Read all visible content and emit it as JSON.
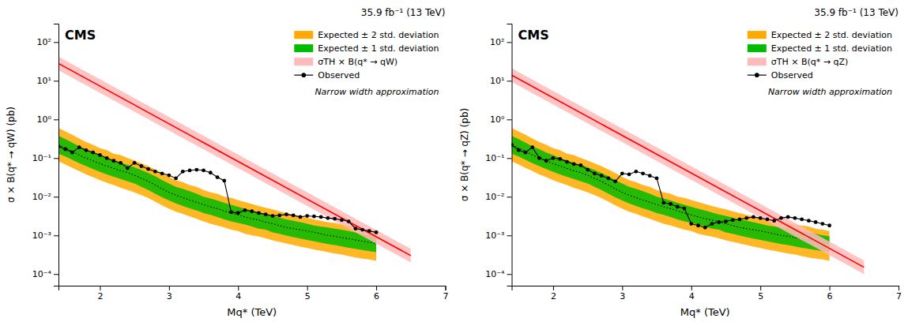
{
  "chart_data": [
    {
      "type": "line",
      "title": "35.9 fb⁻¹ (13 TeV)",
      "x_label": "Mq* (TeV)",
      "y_label": "σ × B(q* → qW) (pb)",
      "annotations": [
        "CMS",
        "Narrow width approximation"
      ],
      "log": "y",
      "legend": "upper right",
      "xlim": [
        1.4,
        7.0
      ],
      "ylim": [
        5e-05,
        300
      ],
      "xticks": [
        2,
        3,
        4,
        5,
        6,
        7
      ],
      "yticks": [
        {
          "value": 0.0001,
          "label": "10⁻⁴"
        },
        {
          "value": 0.001,
          "label": "10⁻³"
        },
        {
          "value": 0.01,
          "label": "10⁻²"
        },
        {
          "value": 0.1,
          "label": "10⁻¹"
        },
        {
          "value": 1,
          "label": "10⁰"
        },
        {
          "value": 10,
          "label": "10¹"
        },
        {
          "value": 100,
          "label": "10²"
        }
      ],
      "x": [
        1.4,
        1.5,
        1.6,
        1.7,
        1.8,
        1.9,
        2.0,
        2.1,
        2.2,
        2.3,
        2.4,
        2.5,
        2.6,
        2.7,
        2.8,
        2.9,
        3.0,
        3.1,
        3.2,
        3.3,
        3.4,
        3.5,
        3.6,
        3.7,
        3.8,
        3.9,
        4.0,
        4.1,
        4.2,
        4.3,
        4.4,
        4.5,
        4.6,
        4.7,
        4.8,
        4.9,
        5.0,
        5.1,
        5.2,
        5.3,
        5.4,
        5.5,
        5.6,
        5.7,
        5.8,
        5.9,
        6.0
      ],
      "series": [
        {
          "type": "area",
          "name": "Expected ± 2 std. deviation",
          "color": "#ffaa00",
          "lower": [
            0.082,
            0.068,
            0.056,
            0.046,
            0.038,
            0.032,
            0.027,
            0.023,
            0.02,
            0.017,
            0.015,
            0.013,
            0.011,
            0.0092,
            0.0075,
            0.006,
            0.0049,
            0.0041,
            0.0036,
            0.0031,
            0.0027,
            0.0023,
            0.002,
            0.0018,
            0.0016,
            0.0014,
            0.0013,
            0.0011,
            0.001,
            0.00093,
            0.00084,
            0.00075,
            0.00068,
            0.00062,
            0.00056,
            0.00051,
            0.00047,
            0.00043,
            0.0004,
            0.00037,
            0.00034,
            0.00032,
            0.00029,
            0.00027,
            0.00025,
            0.00024,
            0.00022
          ],
          "upper": [
            0.6,
            0.49,
            0.4,
            0.32,
            0.26,
            0.22,
            0.18,
            0.16,
            0.13,
            0.12,
            0.1,
            0.087,
            0.073,
            0.062,
            0.051,
            0.041,
            0.033,
            0.027,
            0.024,
            0.02,
            0.018,
            0.015,
            0.013,
            0.012,
            0.01,
            0.0093,
            0.0082,
            0.0073,
            0.0065,
            0.0058,
            0.0052,
            0.0047,
            0.0042,
            0.0038,
            0.0034,
            0.0031,
            0.0029,
            0.0026,
            0.0024,
            0.0022,
            0.0021,
            0.0019,
            0.0018,
            0.0017,
            0.0015,
            0.0014,
            0.0013
          ]
        },
        {
          "type": "area",
          "name": "Expected ± 1 std. deviation",
          "color": "#00bb00",
          "lower": [
            0.13,
            0.11,
            0.09,
            0.074,
            0.062,
            0.052,
            0.044,
            0.038,
            0.033,
            0.029,
            0.025,
            0.022,
            0.018,
            0.015,
            0.012,
            0.0097,
            0.008,
            0.0067,
            0.0058,
            0.005,
            0.0044,
            0.0038,
            0.0034,
            0.003,
            0.0026,
            0.0023,
            0.0021,
            0.0019,
            0.0017,
            0.0015,
            0.0014,
            0.0012,
            0.0011,
            0.00099,
            0.0009,
            0.00083,
            0.00076,
            0.0007,
            0.00065,
            0.0006,
            0.00056,
            0.00052,
            0.00048,
            0.00045,
            0.00042,
            0.00039,
            0.00037
          ],
          "upper": [
            0.38,
            0.31,
            0.25,
            0.2,
            0.17,
            0.14,
            0.12,
            0.1,
            0.088,
            0.076,
            0.067,
            0.058,
            0.049,
            0.041,
            0.034,
            0.027,
            0.022,
            0.018,
            0.016,
            0.014,
            0.012,
            0.01,
            0.009,
            0.008,
            0.007,
            0.0062,
            0.0055,
            0.0049,
            0.0044,
            0.0039,
            0.0035,
            0.0032,
            0.0029,
            0.0026,
            0.0024,
            0.0022,
            0.002,
            0.0018,
            0.0017,
            0.0016,
            0.0015,
            0.0014,
            0.0013,
            0.0012,
            0.0011,
            0.001,
            0.00095
          ]
        },
        {
          "type": "line",
          "line_style": "dotted",
          "color": "#000000",
          "values": [
            0.22,
            0.18,
            0.15,
            0.12,
            0.1,
            0.085,
            0.072,
            0.062,
            0.054,
            0.047,
            0.042,
            0.036,
            0.03,
            0.025,
            0.02,
            0.016,
            0.013,
            0.011,
            0.0095,
            0.0082,
            0.0072,
            0.0063,
            0.0055,
            0.0049,
            0.0043,
            0.0038,
            0.0034,
            0.003,
            0.0027,
            0.0025,
            0.0022,
            0.002,
            0.0018,
            0.0016,
            0.0015,
            0.0014,
            0.0013,
            0.0012,
            0.0011,
            0.001,
            0.00095,
            0.00088,
            0.00082,
            0.00076,
            0.00071,
            0.00066,
            0.00062
          ]
        },
        {
          "type": "area",
          "name": "σTH × B(q* → qW)",
          "color": "#ffbbbb",
          "x": [
            1.4,
            6.5
          ],
          "lower": [
            18.666666666666668,
            0.0002
          ],
          "upper": [
            42.0,
            0.00045
          ]
        },
        {
          "type": "line",
          "color": "#ff0000",
          "x": [
            1.4,
            6.5
          ],
          "values": [
            28.0,
            0.0003
          ]
        },
        {
          "type": "line",
          "name": "Observed",
          "color": "#000000",
          "marker": "circle",
          "values": [
            0.2,
            0.17,
            0.14,
            0.19,
            0.16,
            0.14,
            0.12,
            0.1,
            0.085,
            0.075,
            0.055,
            0.075,
            0.062,
            0.052,
            0.045,
            0.04,
            0.036,
            0.03,
            0.045,
            0.048,
            0.05,
            0.048,
            0.042,
            0.032,
            0.026,
            0.004,
            0.0038,
            0.0045,
            0.0042,
            0.0038,
            0.0035,
            0.0032,
            0.0033,
            0.0035,
            0.0033,
            0.003,
            0.0032,
            0.0031,
            0.003,
            0.0028,
            0.0027,
            0.0025,
            0.0023,
            0.0015,
            0.0014,
            0.0013,
            0.0012
          ]
        }
      ]
    },
    {
      "type": "line",
      "title": "35.9 fb⁻¹ (13 TeV)",
      "x_label": "Mq* (TeV)",
      "y_label": "σ × B(q* → qZ) (pb)",
      "annotations": [
        "CMS",
        "Narrow width approximation"
      ],
      "log": "y",
      "legend": "upper right",
      "xlim": [
        1.4,
        7.0
      ],
      "ylim": [
        5e-05,
        300
      ],
      "xticks": [
        2,
        3,
        4,
        5,
        6,
        7
      ],
      "yticks": [
        {
          "value": 0.0001,
          "label": "10⁻⁴"
        },
        {
          "value": 0.001,
          "label": "10⁻³"
        },
        {
          "value": 0.01,
          "label": "10⁻²"
        },
        {
          "value": 0.1,
          "label": "10⁻¹"
        },
        {
          "value": 1,
          "label": "10⁰"
        },
        {
          "value": 10,
          "label": "10¹"
        },
        {
          "value": 100,
          "label": "10²"
        }
      ],
      "x": [
        1.4,
        1.5,
        1.6,
        1.7,
        1.8,
        1.9,
        2.0,
        2.1,
        2.2,
        2.3,
        2.4,
        2.5,
        2.6,
        2.7,
        2.8,
        2.9,
        3.0,
        3.1,
        3.2,
        3.3,
        3.4,
        3.5,
        3.6,
        3.7,
        3.8,
        3.9,
        4.0,
        4.1,
        4.2,
        4.3,
        4.4,
        4.5,
        4.6,
        4.7,
        4.8,
        4.9,
        5.0,
        5.1,
        5.2,
        5.3,
        5.4,
        5.5,
        5.6,
        5.7,
        5.8,
        5.9,
        6.0
      ],
      "series": [
        {
          "type": "area",
          "name": "Expected ± 2 std. deviation",
          "color": "#ffaa00",
          "lower": [
            0.082,
            0.068,
            0.056,
            0.046,
            0.038,
            0.032,
            0.027,
            0.023,
            0.02,
            0.017,
            0.015,
            0.013,
            0.011,
            0.0092,
            0.0075,
            0.006,
            0.0049,
            0.0041,
            0.0036,
            0.0031,
            0.0027,
            0.0023,
            0.002,
            0.0018,
            0.0016,
            0.0014,
            0.0013,
            0.0011,
            0.001,
            0.00093,
            0.00084,
            0.00075,
            0.00068,
            0.00062,
            0.00056,
            0.00051,
            0.00047,
            0.00043,
            0.0004,
            0.00037,
            0.00034,
            0.00032,
            0.00029,
            0.00027,
            0.00025,
            0.00024,
            0.00022
          ],
          "upper": [
            0.6,
            0.49,
            0.4,
            0.32,
            0.26,
            0.22,
            0.18,
            0.16,
            0.13,
            0.12,
            0.1,
            0.087,
            0.073,
            0.062,
            0.051,
            0.041,
            0.033,
            0.027,
            0.024,
            0.02,
            0.018,
            0.015,
            0.013,
            0.012,
            0.01,
            0.0093,
            0.0082,
            0.0073,
            0.0065,
            0.0058,
            0.0052,
            0.0047,
            0.0042,
            0.0038,
            0.0034,
            0.0031,
            0.0029,
            0.0026,
            0.0024,
            0.0022,
            0.0021,
            0.0019,
            0.0018,
            0.0017,
            0.0015,
            0.0014,
            0.0013
          ]
        },
        {
          "type": "area",
          "name": "Expected ± 1 std. deviation",
          "color": "#00bb00",
          "lower": [
            0.13,
            0.11,
            0.09,
            0.074,
            0.062,
            0.052,
            0.044,
            0.038,
            0.033,
            0.029,
            0.025,
            0.022,
            0.018,
            0.015,
            0.012,
            0.0097,
            0.008,
            0.0067,
            0.0058,
            0.005,
            0.0044,
            0.0038,
            0.0034,
            0.003,
            0.0026,
            0.0023,
            0.0021,
            0.0019,
            0.0017,
            0.0015,
            0.0014,
            0.0012,
            0.0011,
            0.00099,
            0.0009,
            0.00083,
            0.00076,
            0.0007,
            0.00065,
            0.0006,
            0.00056,
            0.00052,
            0.00048,
            0.00045,
            0.00042,
            0.00039,
            0.00037
          ],
          "upper": [
            0.38,
            0.31,
            0.25,
            0.2,
            0.17,
            0.14,
            0.12,
            0.1,
            0.088,
            0.076,
            0.067,
            0.058,
            0.049,
            0.041,
            0.034,
            0.027,
            0.022,
            0.018,
            0.016,
            0.014,
            0.012,
            0.01,
            0.009,
            0.008,
            0.007,
            0.0062,
            0.0055,
            0.0049,
            0.0044,
            0.0039,
            0.0035,
            0.0032,
            0.0029,
            0.0026,
            0.0024,
            0.0022,
            0.002,
            0.0018,
            0.0017,
            0.0016,
            0.0015,
            0.0014,
            0.0013,
            0.0012,
            0.0011,
            0.001,
            0.00095
          ]
        },
        {
          "type": "line",
          "line_style": "dotted",
          "color": "#000000",
          "values": [
            0.22,
            0.18,
            0.15,
            0.12,
            0.1,
            0.085,
            0.072,
            0.062,
            0.054,
            0.047,
            0.042,
            0.036,
            0.03,
            0.025,
            0.02,
            0.016,
            0.013,
            0.011,
            0.0095,
            0.0082,
            0.0072,
            0.0063,
            0.0055,
            0.0049,
            0.0043,
            0.0038,
            0.0034,
            0.003,
            0.0027,
            0.0025,
            0.0022,
            0.002,
            0.0018,
            0.0016,
            0.0015,
            0.0014,
            0.0013,
            0.0012,
            0.0011,
            0.001,
            0.00095,
            0.00088,
            0.00082,
            0.00076,
            0.00071,
            0.00066,
            0.00062
          ]
        },
        {
          "type": "area",
          "name": "σTH × B(q* → qZ)",
          "color": "#ffbbbb",
          "x": [
            1.4,
            6.5
          ],
          "lower": [
            9.333333333333334,
            0.0001
          ],
          "upper": [
            21.0,
            0.000225
          ]
        },
        {
          "type": "line",
          "color": "#ff0000",
          "x": [
            1.4,
            6.5
          ],
          "values": [
            14.0,
            0.00015
          ]
        },
        {
          "type": "line",
          "name": "Observed",
          "color": "#000000",
          "marker": "circle",
          "values": [
            0.22,
            0.16,
            0.14,
            0.19,
            0.1,
            0.085,
            0.1,
            0.095,
            0.08,
            0.07,
            0.065,
            0.05,
            0.04,
            0.035,
            0.03,
            0.025,
            0.04,
            0.038,
            0.045,
            0.04,
            0.035,
            0.03,
            0.007,
            0.0065,
            0.0055,
            0.005,
            0.002,
            0.0018,
            0.0016,
            0.002,
            0.0022,
            0.0023,
            0.0025,
            0.0026,
            0.0028,
            0.003,
            0.0028,
            0.0026,
            0.0024,
            0.0028,
            0.003,
            0.0028,
            0.0026,
            0.0024,
            0.0022,
            0.002,
            0.0018
          ]
        }
      ]
    }
  ]
}
